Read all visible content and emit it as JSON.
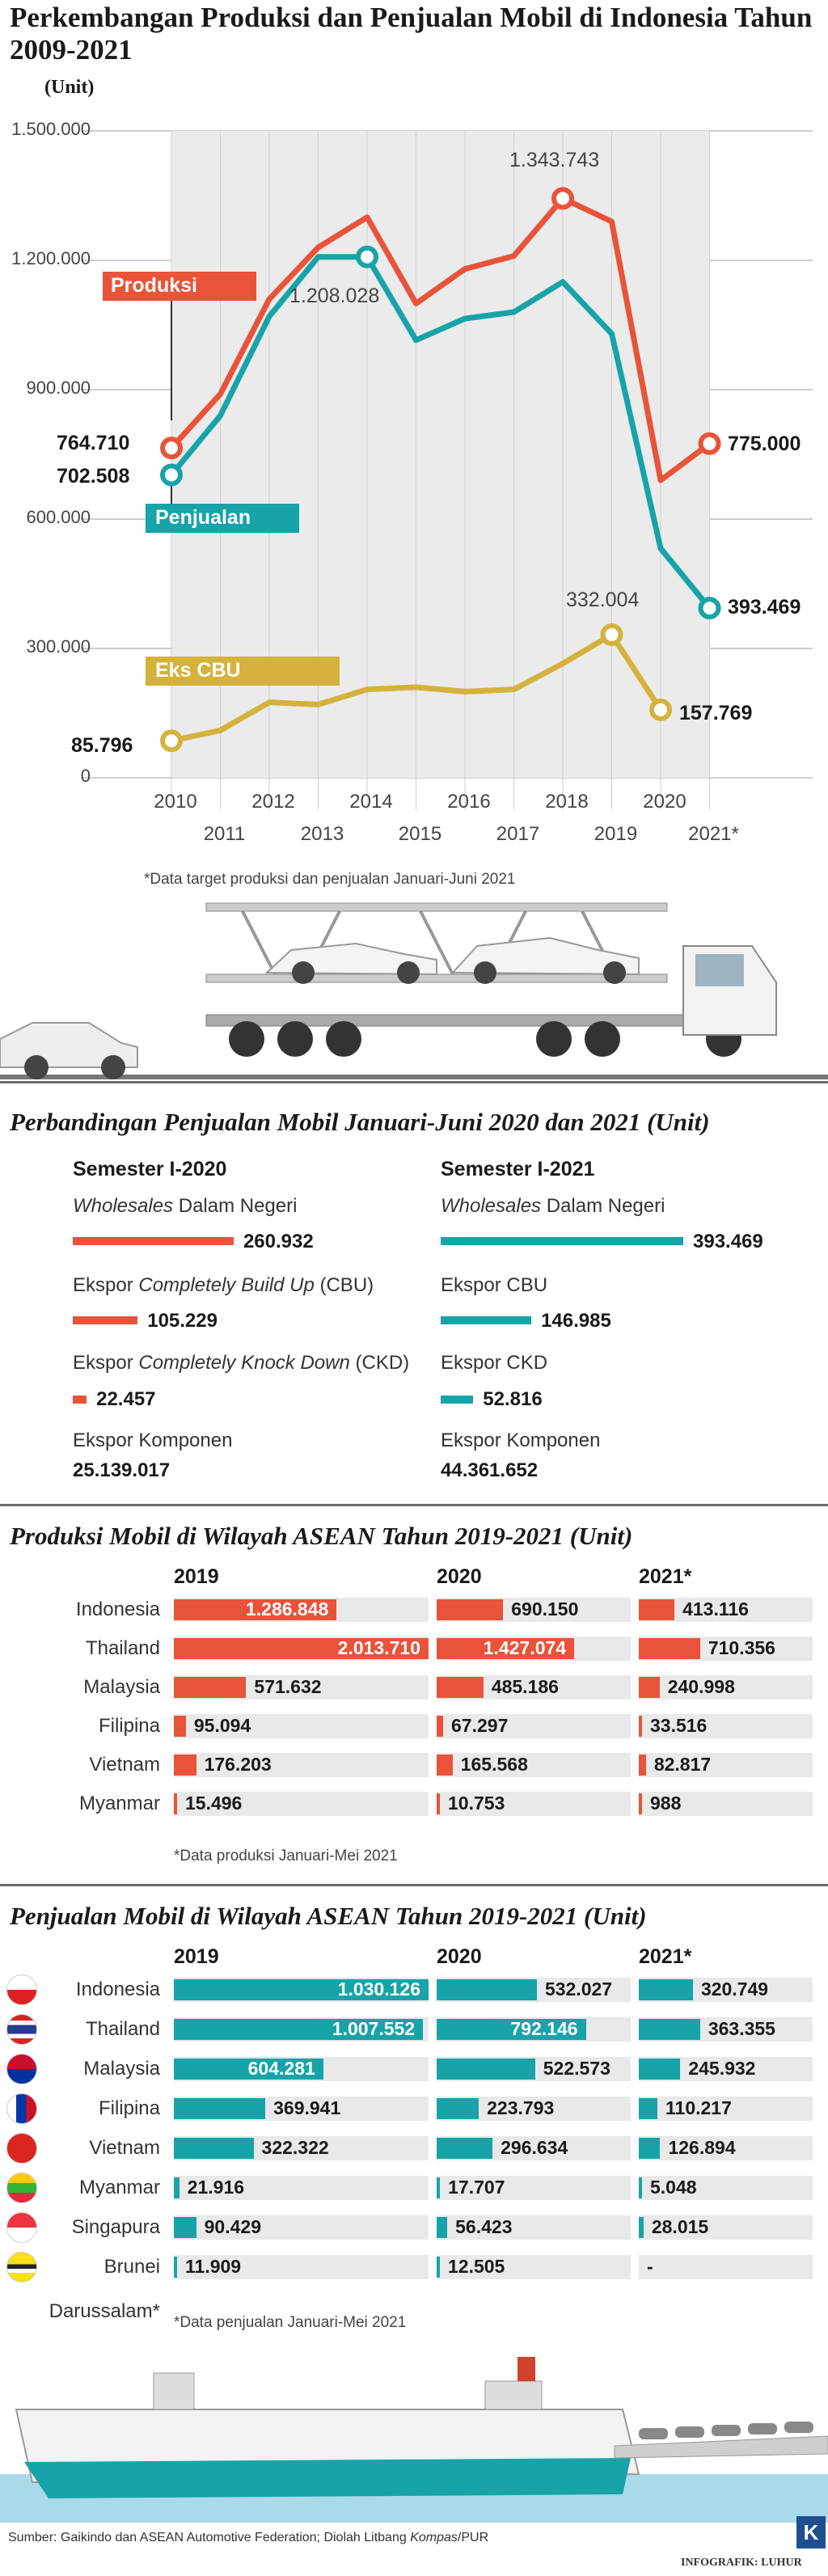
{
  "title": "Perkembangan Produksi dan Penjualan Mobil di Indonesia Tahun 2009-2021",
  "chart_data": [
    {
      "type": "line",
      "title": "Perkembangan Produksi dan Penjualan Mobil di Indonesia Tahun 2009-2021",
      "ylabel": "(Unit)",
      "ylim": [
        0,
        1500000
      ],
      "yticks": [
        "0",
        "300.000",
        "600.000",
        "900.000",
        "1.200.000",
        "1.500.000"
      ],
      "x": [
        2010,
        2011,
        2012,
        2013,
        2014,
        2015,
        2016,
        2017,
        2018,
        2019,
        2020,
        2021
      ],
      "x_labels": [
        "2010",
        "2011",
        "2012",
        "2013",
        "2014",
        "2015",
        "2016",
        "2017",
        "2018",
        "2019",
        "2020",
        "2021*"
      ],
      "grid": true,
      "series": [
        {
          "name": "Produksi",
          "color": "#e8533a",
          "values": [
            764710,
            890000,
            1110000,
            1230000,
            1300000,
            1100000,
            1180000,
            1210000,
            1343743,
            1290000,
            690000,
            775000
          ]
        },
        {
          "name": "Penjualan",
          "color": "#17a3a8",
          "values": [
            702508,
            840000,
            1070000,
            1208028,
            1208028,
            1015000,
            1065000,
            1080000,
            1150000,
            1030000,
            532000,
            393469
          ]
        },
        {
          "name": "Eks CBU",
          "color": "#d4b23c",
          "values": [
            85796,
            110000,
            175000,
            170000,
            205000,
            210000,
            200000,
            205000,
            265000,
            332004,
            157769,
            null
          ]
        }
      ],
      "annotations": [
        "764.710",
        "702.508",
        "1.208.028",
        "1.343.743",
        "775.000",
        "393.469",
        "85.796",
        "332.004",
        "157.769"
      ],
      "note": "*Data target produksi dan penjualan Januari-Juni 2021"
    },
    {
      "type": "bar",
      "title": "Perbandingan Penjualan Mobil Januari-Juni 2020 dan 2021 (Unit)",
      "series": [
        {
          "name": "Semester I-2020",
          "color": "#e8533a",
          "values": [
            260932,
            105229,
            22457,
            25139017
          ]
        },
        {
          "name": "Semester I-2021",
          "color": "#17a3a8",
          "values": [
            393469,
            146985,
            52816,
            44361652
          ]
        }
      ],
      "categories": [
        "Wholesales Dalam Negeri",
        "Ekspor Completely Build Up (CBU)",
        "Ekspor Completely Knock Down (CKD)",
        "Ekspor Komponen"
      ]
    },
    {
      "type": "bar",
      "title": "Produksi Mobil di Wilayah ASEAN Tahun 2019-2021 (Unit)",
      "categories": [
        "Indonesia",
        "Thailand",
        "Malaysia",
        "Filipina",
        "Vietnam",
        "Myanmar"
      ],
      "series": [
        {
          "name": "2019",
          "values": [
            1286848,
            2013710,
            571632,
            95094,
            176203,
            15496
          ]
        },
        {
          "name": "2020",
          "values": [
            690150,
            1427074,
            485186,
            67297,
            165568,
            10753
          ]
        },
        {
          "name": "2021*",
          "values": [
            413116,
            710356,
            240998,
            33516,
            82817,
            988
          ]
        }
      ],
      "note": "*Data produksi Januari-Mei 2021"
    },
    {
      "type": "bar",
      "title": "Penjualan Mobil di Wilayah ASEAN Tahun 2019-2021 (Unit)",
      "categories": [
        "Indonesia",
        "Thailand",
        "Malaysia",
        "Filipina",
        "Vietnam",
        "Myanmar",
        "Singapura",
        "Brunei Darussalam*"
      ],
      "series": [
        {
          "name": "2019",
          "values": [
            1030126,
            1007552,
            604281,
            369941,
            322322,
            21916,
            90429,
            11909
          ]
        },
        {
          "name": "2020",
          "values": [
            532027,
            792146,
            522573,
            223793,
            296634,
            17707,
            56423,
            12505
          ]
        },
        {
          "name": "2021*",
          "values": [
            320749,
            363355,
            245932,
            110217,
            126894,
            5048,
            28015,
            null
          ]
        }
      ],
      "note": "*Data penjualan Januari-Mei 2021"
    }
  ],
  "line": {
    "unit": "(Unit)",
    "yticks": [
      "0",
      "300.000",
      "600.000",
      "900.000",
      "1.200.000",
      "1.500.000"
    ],
    "years_top": [
      "2010",
      "2012",
      "2014",
      "2016",
      "2018",
      "2020"
    ],
    "years_bottom": [
      "2011",
      "2013",
      "2015",
      "2017",
      "2019",
      "2021*"
    ],
    "labels": {
      "produksi": "Produksi",
      "penjualan": "Penjualan",
      "ekscbu": "Eks CBU"
    },
    "values": {
      "p_start": "764.710",
      "s_start": "702.508",
      "s_peak": "1.208.028",
      "p_peak": "1.343.743",
      "p_end": "775.000",
      "s_end": "393.469",
      "e_start": "85.796",
      "e_peak": "332.004",
      "e_end": "157.769"
    },
    "note": "*Data target produksi dan penjualan Januari-Juni 2021"
  },
  "semester": {
    "title": "Perbandingan Penjualan Mobil Januari-Juni 2020 dan 2021 (Unit)",
    "h2020": "Semester I-2020",
    "h2021": "Semester I-2021",
    "wholesales_it": "Wholesales",
    "wholesales_rest": " Dalam Negeri",
    "cbu_a": "Ekspor ",
    "cbu_it": "Completely Build Up",
    "cbu_b": " (CBU)",
    "ckd_a": "Ekspor ",
    "ckd_it": "Completely Knock Down",
    "ckd_b": " (CKD)",
    "cbu_short": "Ekspor CBU",
    "ckd_short": "Ekspor CKD",
    "komponen": "Ekspor Komponen",
    "v2020": [
      "260.932",
      "105.229",
      "22.457",
      "25.139.017"
    ],
    "v2021": [
      "393.469",
      "146.985",
      "52.816",
      "44.361.652"
    ]
  },
  "prod": {
    "title": "Produksi Mobil di Wilayah ASEAN Tahun 2019-2021 (Unit)",
    "headers": [
      "2019",
      "2020",
      "2021*"
    ],
    "rows": [
      {
        "name": "Indonesia",
        "v": [
          "1.286.848",
          "690.150",
          "413.116"
        ]
      },
      {
        "name": "Thailand",
        "v": [
          "2.013.710",
          "1.427.074",
          "710.356"
        ]
      },
      {
        "name": "Malaysia",
        "v": [
          "571.632",
          "485.186",
          "240.998"
        ]
      },
      {
        "name": "Filipina",
        "v": [
          "95.094",
          "67.297",
          "33.516"
        ]
      },
      {
        "name": "Vietnam",
        "v": [
          "176.203",
          "165.568",
          "82.817"
        ]
      },
      {
        "name": "Myanmar",
        "v": [
          "15.496",
          "10.753",
          "988"
        ]
      }
    ],
    "note": "*Data produksi Januari-Mei 2021"
  },
  "sales": {
    "title": "Penjualan Mobil di Wilayah ASEAN Tahun 2019-2021 (Unit)",
    "headers": [
      "2019",
      "2020",
      "2021*"
    ],
    "rows": [
      {
        "name": "Indonesia",
        "v": [
          "1.030.126",
          "532.027",
          "320.749"
        ]
      },
      {
        "name": "Thailand",
        "v": [
          "1.007.552",
          "792.146",
          "363.355"
        ]
      },
      {
        "name": "Malaysia",
        "v": [
          "604.281",
          "522.573",
          "245.932"
        ]
      },
      {
        "name": "Filipina",
        "v": [
          "369.941",
          "223.793",
          "110.217"
        ]
      },
      {
        "name": "Vietnam",
        "v": [
          "322.322",
          "296.634",
          "126.894"
        ]
      },
      {
        "name": "Myanmar",
        "v": [
          "21.916",
          "17.707",
          "5.048"
        ]
      },
      {
        "name": "Singapura",
        "v": [
          "90.429",
          "56.423",
          "28.015"
        ]
      },
      {
        "name": "Brunei",
        "v": [
          "11.909",
          "12.505",
          "-"
        ]
      }
    ],
    "brunei_line2": "Darussalam*",
    "note": "*Data penjualan Januari-Mei 2021"
  },
  "footer": {
    "source_a": "Sumber: Gaikindo dan ASEAN Automotive Federation; Diolah Litbang ",
    "source_it": "Kompas",
    "source_b": "/PUR",
    "credit": "INFOGRAFIK: LUHUR",
    "logo_letter": "K"
  },
  "colors": {
    "red": "#e8533a",
    "teal": "#17a3a8",
    "gold": "#d4b23c",
    "band": "#ebebeb"
  }
}
